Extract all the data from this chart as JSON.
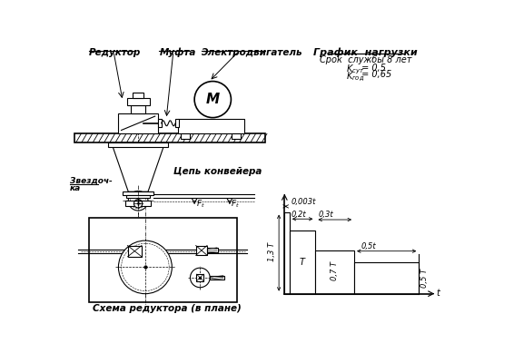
{
  "bg_color": "#ffffff",
  "labels": {
    "reduktor": "Редуктор",
    "mufta": "Муфта",
    "elektrodvigatel": "Электродвигатель",
    "tsep": "Цепь конвейера",
    "zvezdochka_1": "Звездоч-",
    "zvezdochka_2": "ка",
    "skhema": "Схема редуктора (в плане)",
    "grafik": "График  нагрузки",
    "srok": "Срок  службы 8 лет",
    "ksut_text": "K",
    "ksut_sub": "сут",
    "ksut_val": " = 0,5",
    "kgod_text": "K",
    "kgod_sub": "год",
    "kgod_val": " = 0,65",
    "M_label": "M",
    "t_axis": "t",
    "dim_003": "0,003t",
    "dim_02": "0,2t",
    "dim_03": "0,3t",
    "dim_05": "0,5t",
    "label_13T": "1,3 T",
    "label_T": "T",
    "label_07T": "0,7 T",
    "label_05T": "0,5 T"
  }
}
